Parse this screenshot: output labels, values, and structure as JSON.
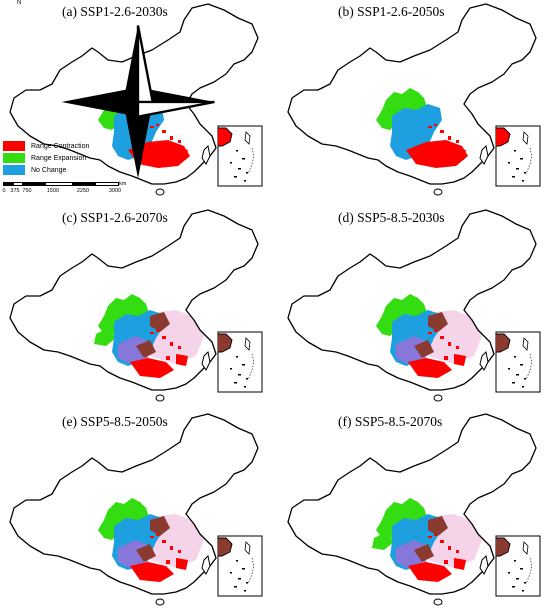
{
  "panels": [
    {
      "title": "(a) SSP1-2.6-2030s",
      "variant": "a"
    },
    {
      "title": "(b) SSP1-2.6-2050s",
      "variant": "b"
    },
    {
      "title": "(c) SSP1-2.6-2070s",
      "variant": "c"
    },
    {
      "title": "(d) SSP5-8.5-2030s",
      "variant": "d"
    },
    {
      "title": "(e) SSP5-8.5-2050s",
      "variant": "e"
    },
    {
      "title": "(f) SSP5-8.5-2070s",
      "variant": "f"
    }
  ],
  "legend": {
    "items": [
      {
        "label": "Range Contraction",
        "color": "#ff0000"
      },
      {
        "label": "Range Expansion",
        "color": "#33dd11"
      },
      {
        "label": "No Change",
        "color": "#1ea0e0"
      }
    ]
  },
  "scale_bar": {
    "ticks": [
      "0",
      "375",
      "750",
      "1500",
      "2250",
      "3000"
    ],
    "unit": "km"
  },
  "compass": {
    "label": "N"
  }
}
